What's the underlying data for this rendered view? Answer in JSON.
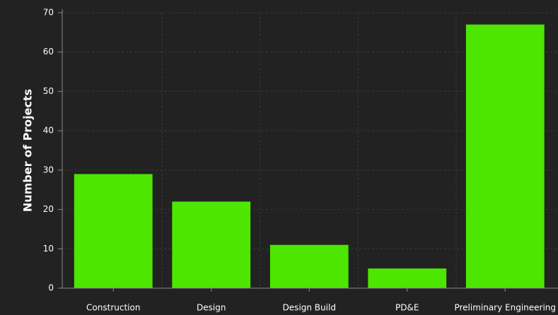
{
  "chart_data": {
    "type": "bar",
    "y_label": "Number of Projects",
    "categories": [
      "Construction",
      "Design",
      "Design Build",
      "PD&E",
      "Preliminary Engineering"
    ],
    "values": [
      29,
      22,
      11,
      5,
      67
    ],
    "color": "#4ce600",
    "ylim": [
      0,
      70
    ],
    "yticks": [
      0,
      10,
      20,
      30,
      40,
      50,
      60,
      70
    ],
    "grid": true
  }
}
